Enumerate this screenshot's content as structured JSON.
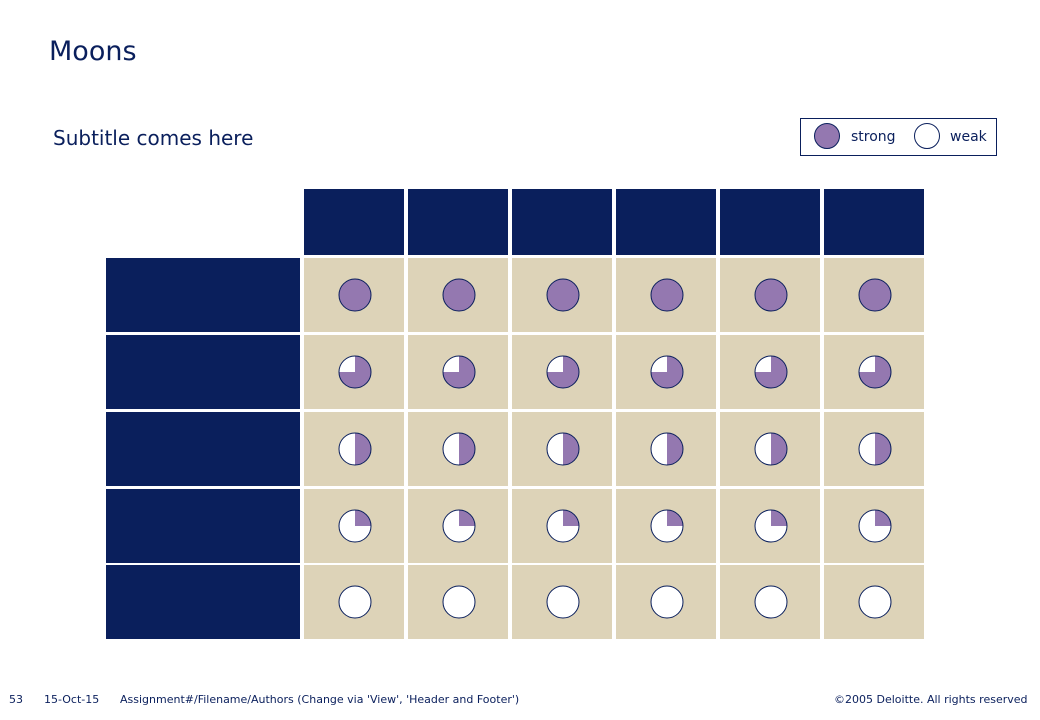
{
  "slide": {
    "title": "Moons",
    "subtitle": "Subtitle comes here"
  },
  "legend": {
    "strong_label": "strong",
    "weak_label": "weak"
  },
  "matrix": {
    "columns": 6,
    "row_fills": [
      1,
      0.75,
      0.5,
      0.25,
      0
    ]
  },
  "colors": {
    "navy": "#0a1f5c",
    "beige": "#ddd3b8",
    "purple": "#9478b0"
  },
  "footer": {
    "page_number": "53",
    "date": "15-Oct-15",
    "assignment": "Assignment#/Filename/Authors (Change via 'View', 'Header and Footer')",
    "copyright": "©2005 Deloitte. All rights reserved"
  }
}
